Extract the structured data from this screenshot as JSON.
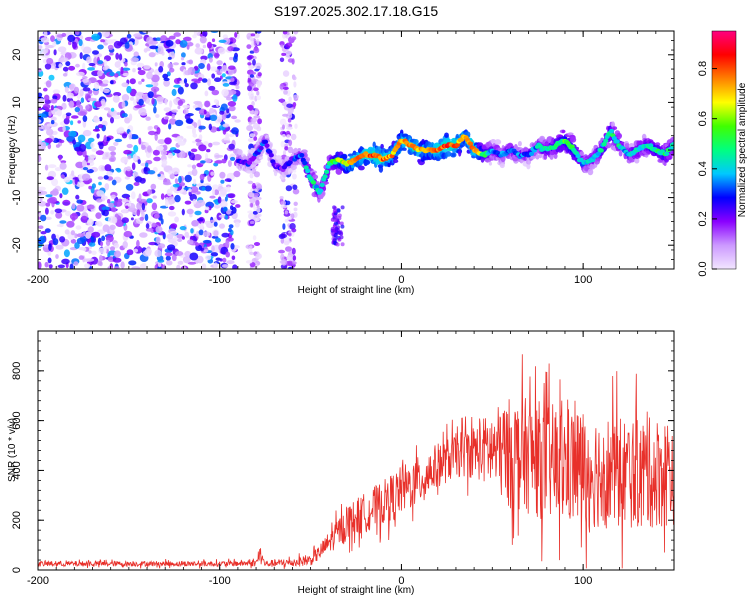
{
  "title": "S197.2025.302.17.18.G15",
  "chart_data": [
    {
      "type": "heatmap",
      "xlabel": "Height of straight line (km)",
      "ylabel": "Frequency (Hz)",
      "xlim": [
        -200,
        150
      ],
      "ylim": [
        -25,
        25
      ],
      "xticks": [
        -200,
        -100,
        0,
        100
      ],
      "xtick_labels": [
        "-200",
        "-100",
        "0",
        "100"
      ],
      "yticks": [
        -20,
        -10,
        0,
        10,
        20
      ],
      "ytick_labels": [
        "-20",
        "-10",
        "0",
        "10",
        "20"
      ],
      "colorbar": {
        "label": "Normalized spectral amplitude",
        "range": [
          0,
          0.95
        ],
        "ticks": [
          0,
          0.2,
          0.4,
          0.6,
          0.8
        ],
        "tick_labels": [
          "0.0",
          "0.2",
          "0.4",
          "0.6",
          "0.8"
        ],
        "colors": [
          "#f2e6ff",
          "#cc99ff",
          "#8a00ff",
          "#0000ff",
          "#00c8ff",
          "#00ff80",
          "#40ff00",
          "#ffff00",
          "#ff8000",
          "#ff0000",
          "#ff0080"
        ]
      },
      "noise_region_x": [
        -200,
        -90
      ],
      "ridge": {
        "x": [
          -90,
          -85,
          -80,
          -75,
          -70,
          -65,
          -60,
          -55,
          -50,
          -45,
          -40,
          -35,
          -30,
          -25,
          -20,
          -15,
          -10,
          -5,
          0,
          5,
          10,
          15,
          20,
          25,
          30,
          35,
          40,
          45,
          50,
          55,
          60,
          65,
          70,
          75,
          80,
          85,
          90,
          95,
          100,
          105,
          110,
          115,
          120,
          125,
          130,
          135,
          140,
          145,
          150
        ],
        "y": [
          -2,
          -3,
          -1,
          2,
          -3,
          -4,
          -2,
          -1,
          -6,
          -9,
          -3,
          -2,
          -3,
          -2,
          -1,
          -1,
          -2,
          -1,
          2,
          1,
          0,
          0,
          0,
          1,
          1,
          3,
          0,
          -1,
          0,
          -1,
          0,
          -1,
          -1,
          1,
          0,
          1,
          2,
          0,
          -3,
          -2,
          0,
          4,
          1,
          -1,
          0,
          1,
          0,
          -1,
          1
        ],
        "amp": [
          0.35,
          0.3,
          0.35,
          0.35,
          0.3,
          0.3,
          0.35,
          0.4,
          0.55,
          0.45,
          0.5,
          0.65,
          0.75,
          0.8,
          0.85,
          0.9,
          0.85,
          0.8,
          0.8,
          0.85,
          0.8,
          0.75,
          0.85,
          0.9,
          0.85,
          0.75,
          0.85,
          0.6,
          0.45,
          0.4,
          0.45,
          0.4,
          0.4,
          0.45,
          0.5,
          0.55,
          0.6,
          0.6,
          0.45,
          0.45,
          0.5,
          0.55,
          0.5,
          0.45,
          0.5,
          0.5,
          0.55,
          0.55,
          0.5
        ]
      }
    },
    {
      "type": "line",
      "xlabel": "Height of straight line (km)",
      "ylabel": "SNR (10 * v/v)",
      "xlim": [
        -200,
        150
      ],
      "ylim": [
        0,
        960
      ],
      "xticks": [
        -200,
        -100,
        0,
        100
      ],
      "xtick_labels": [
        "-200",
        "-100",
        "0",
        "100"
      ],
      "yticks": [
        0,
        200,
        400,
        600,
        800
      ],
      "ytick_labels": [
        "0",
        "200",
        "400",
        "600",
        "800"
      ],
      "color": "#e8302a",
      "envelope": {
        "x": [
          -200,
          -100,
          -80,
          -78,
          -75,
          -60,
          -50,
          -45,
          -40,
          -30,
          -20,
          -10,
          0,
          10,
          20,
          30,
          40,
          50,
          60,
          70,
          80,
          90,
          100,
          110,
          120,
          130,
          140,
          150
        ],
        "mean": [
          25,
          25,
          28,
          60,
          25,
          30,
          40,
          70,
          110,
          190,
          230,
          270,
          320,
          360,
          420,
          460,
          480,
          480,
          470,
          460,
          430,
          420,
          410,
          400,
          390,
          390,
          390,
          400
        ],
        "spread": [
          12,
          12,
          15,
          40,
          15,
          20,
          25,
          35,
          50,
          80,
          90,
          100,
          110,
          110,
          100,
          100,
          120,
          180,
          250,
          260,
          270,
          270,
          270,
          260,
          260,
          250,
          250,
          250
        ]
      }
    }
  ]
}
